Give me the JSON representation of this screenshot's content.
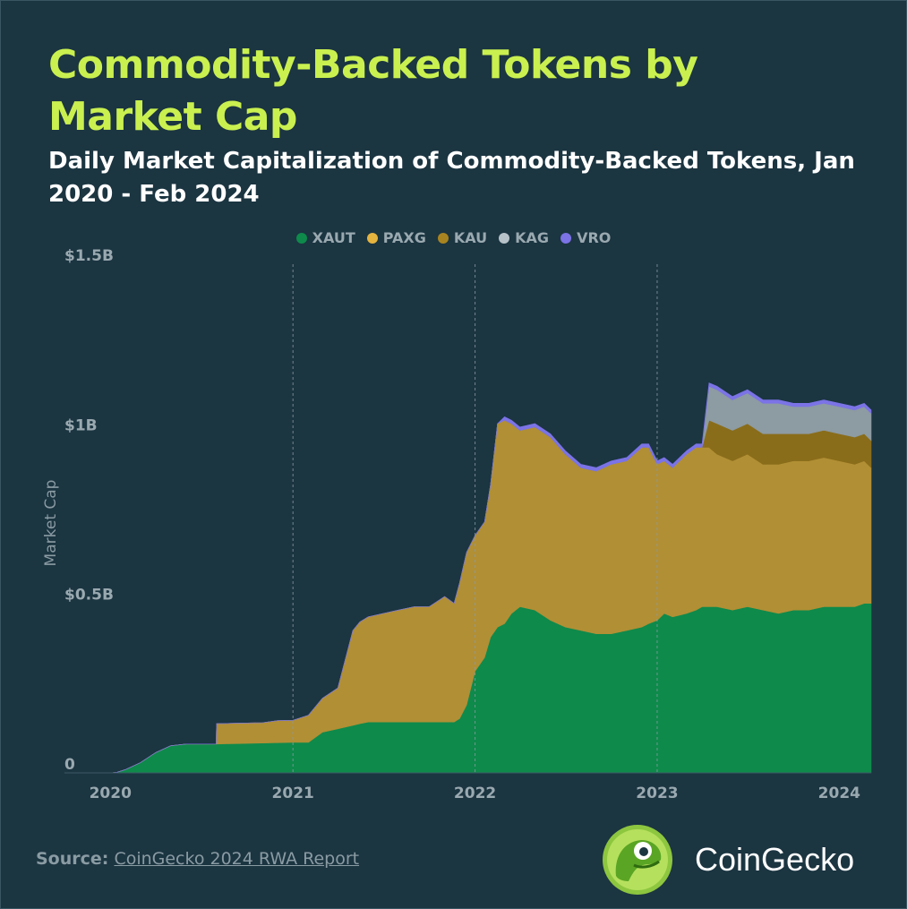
{
  "title": "Commodity-Backed Tokens by Market Cap",
  "subtitle": "Daily Market Capitalization of Commodity-Backed Tokens, Jan 2020 - Feb 2024",
  "source": {
    "label": "Source:",
    "link_text": "CoinGecko 2024 RWA Report"
  },
  "brand": {
    "name": "CoinGecko",
    "logo_icon": "coingecko-logo-icon"
  },
  "colors": {
    "background": "#1b3541",
    "title": "#c9f04f",
    "XAUT": "#0e8a4b",
    "PAXG": "#b18f35",
    "KAU": "#8a6d1a",
    "KAG": "#8d9ba2",
    "VRO": "#7b73e6"
  },
  "chart_data": {
    "type": "area",
    "stacked": true,
    "title": "Commodity-Backed Tokens by Market Cap",
    "subtitle": "Daily Market Capitalization of Commodity-Backed Tokens, Jan 2020 - Feb 2024",
    "xlabel": "",
    "ylabel": "Market Cap",
    "x_ticks": [
      "2020",
      "2021",
      "2022",
      "2023",
      "2024"
    ],
    "y_ticks": [
      {
        "value": 0,
        "label": "0"
      },
      {
        "value": 0.5,
        "label": "$0.5B"
      },
      {
        "value": 1,
        "label": "$1B"
      },
      {
        "value": 1.5,
        "label": "$1.5B"
      }
    ],
    "ylim": [
      0,
      1.5
    ],
    "y_unit": "billion USD",
    "xlim": [
      "2019-10-01",
      "2024-03-05"
    ],
    "legend_position": "top-center",
    "grid": "vertical dashed lines at year boundaries",
    "x": [
      "2019-10-01",
      "2020-01-01",
      "2020-01-15",
      "2020-02-01",
      "2020-03-01",
      "2020-04-01",
      "2020-05-01",
      "2020-06-01",
      "2020-07-31",
      "2020-08-01",
      "2020-09-01",
      "2020-10-01",
      "2020-11-01",
      "2020-12-01",
      "2021-01-01",
      "2021-02-01",
      "2021-03-01",
      "2021-04-01",
      "2021-05-01",
      "2021-05-15",
      "2021-06-01",
      "2021-07-01",
      "2021-08-01",
      "2021-09-01",
      "2021-10-01",
      "2021-11-01",
      "2021-11-20",
      "2021-12-01",
      "2021-12-15",
      "2022-01-01",
      "2022-01-20",
      "2022-02-01",
      "2022-02-15",
      "2022-03-01",
      "2022-03-15",
      "2022-04-01",
      "2022-05-01",
      "2022-06-01",
      "2022-07-01",
      "2022-08-01",
      "2022-09-01",
      "2022-10-01",
      "2022-11-01",
      "2022-12-01",
      "2022-12-15",
      "2023-01-01",
      "2023-01-15",
      "2023-02-01",
      "2023-03-01",
      "2023-03-20",
      "2023-04-01",
      "2023-04-15",
      "2023-05-01",
      "2023-06-01",
      "2023-07-01",
      "2023-08-01",
      "2023-09-01",
      "2023-10-01",
      "2023-11-01",
      "2023-12-01",
      "2024-01-01",
      "2024-02-01",
      "2024-02-20",
      "2024-03-05"
    ],
    "series": [
      {
        "name": "XAUT",
        "color": "#0e8a4b",
        "values": [
          0,
          0,
          0.002,
          0.01,
          0.03,
          0.06,
          0.08,
          0.085,
          0.085,
          0.085,
          0.086,
          0.087,
          0.088,
          0.089,
          0.09,
          0.09,
          0.12,
          0.13,
          0.14,
          0.145,
          0.15,
          0.15,
          0.15,
          0.15,
          0.15,
          0.15,
          0.15,
          0.16,
          0.2,
          0.3,
          0.34,
          0.4,
          0.43,
          0.44,
          0.47,
          0.49,
          0.48,
          0.45,
          0.43,
          0.42,
          0.41,
          0.41,
          0.42,
          0.43,
          0.44,
          0.45,
          0.47,
          0.46,
          0.47,
          0.48,
          0.49,
          0.49,
          0.49,
          0.48,
          0.49,
          0.48,
          0.47,
          0.48,
          0.48,
          0.49,
          0.49,
          0.49,
          0.5,
          0.5
        ]
      },
      {
        "name": "PAXG",
        "color": "#b18f35",
        "values": [
          0,
          0,
          0,
          0,
          0,
          0,
          0,
          0,
          0,
          0.06,
          0.06,
          0.06,
          0.06,
          0.065,
          0.065,
          0.08,
          0.1,
          0.12,
          0.28,
          0.3,
          0.31,
          0.32,
          0.33,
          0.34,
          0.34,
          0.37,
          0.35,
          0.4,
          0.45,
          0.4,
          0.4,
          0.45,
          0.6,
          0.6,
          0.56,
          0.52,
          0.54,
          0.54,
          0.51,
          0.48,
          0.48,
          0.5,
          0.5,
          0.53,
          0.52,
          0.46,
          0.45,
          0.44,
          0.47,
          0.48,
          0.47,
          0.47,
          0.45,
          0.44,
          0.45,
          0.43,
          0.44,
          0.44,
          0.44,
          0.44,
          0.43,
          0.42,
          0.42,
          0.4
        ]
      },
      {
        "name": "KAU",
        "color": "#8a6d1a",
        "values": [
          0,
          0,
          0,
          0,
          0,
          0,
          0,
          0,
          0,
          0,
          0,
          0,
          0,
          0,
          0,
          0,
          0,
          0,
          0,
          0,
          0,
          0,
          0,
          0,
          0,
          0,
          0,
          0,
          0,
          0,
          0,
          0,
          0,
          0,
          0,
          0,
          0,
          0,
          0,
          0,
          0,
          0,
          0,
          0,
          0,
          0,
          0,
          0,
          0,
          0,
          0,
          0.08,
          0.09,
          0.09,
          0.09,
          0.09,
          0.09,
          0.08,
          0.08,
          0.08,
          0.08,
          0.08,
          0.08,
          0.08
        ]
      },
      {
        "name": "KAG",
        "color": "#8d9ba2",
        "values": [
          0,
          0,
          0,
          0,
          0,
          0,
          0,
          0,
          0,
          0,
          0,
          0,
          0,
          0,
          0,
          0,
          0,
          0,
          0,
          0,
          0,
          0,
          0,
          0,
          0,
          0,
          0,
          0,
          0,
          0,
          0,
          0,
          0,
          0,
          0,
          0,
          0,
          0,
          0,
          0,
          0,
          0,
          0,
          0,
          0,
          0,
          0,
          0,
          0,
          0,
          0,
          0.1,
          0.1,
          0.09,
          0.09,
          0.09,
          0.09,
          0.08,
          0.08,
          0.08,
          0.08,
          0.08,
          0.08,
          0.08
        ]
      },
      {
        "name": "VRO",
        "color": "#7b73e6",
        "values": [
          0,
          0,
          0,
          0,
          0,
          0,
          0,
          0,
          0,
          0,
          0,
          0,
          0,
          0,
          0,
          0,
          0,
          0,
          0,
          0,
          0,
          0,
          0,
          0,
          0,
          0,
          0,
          0,
          0,
          0,
          0,
          0,
          0,
          0.01,
          0.01,
          0.01,
          0.01,
          0.01,
          0.01,
          0.01,
          0.01,
          0.01,
          0.01,
          0.01,
          0.01,
          0.01,
          0.01,
          0.01,
          0.01,
          0.01,
          0.01,
          0.01,
          0.01,
          0.01,
          0.01,
          0.01,
          0.01,
          0.01,
          0.01,
          0.01,
          0.01,
          0.01,
          0.01,
          0.01
        ]
      }
    ]
  }
}
